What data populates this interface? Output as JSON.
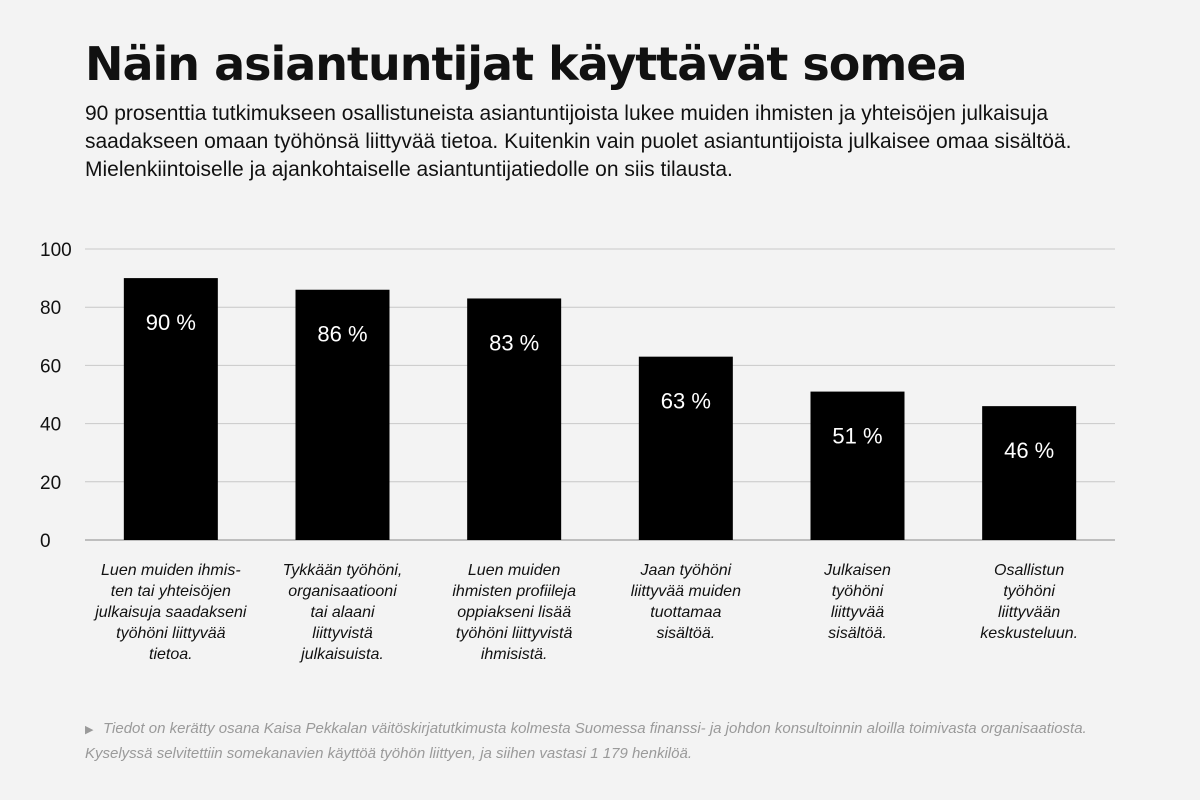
{
  "header": {
    "title": "Näin asiantuntijat käyttävät somea",
    "intro": "90 prosenttia tutkimukseen osallistuneista asiantuntijoista lukee muiden ihmisten ja yhteisöjen julkaisuja saadakseen omaan työhönsä liittyvää tietoa. Kuitenkin vain puolet asiantuntijoista julkaisee omaa sisältöä. Mielenkiintoiselle ja ajankohtaiselle asiantuntijatiedolle on siis tilausta."
  },
  "chart_data": {
    "type": "bar",
    "categories": [
      [
        "Luen muiden ihmis-",
        "ten tai yhteisöjen",
        "julkaisuja saadakseni",
        "työhöni liittyvää",
        "tietoa."
      ],
      [
        "Tykkään työhöni,",
        "organisaatiooni",
        "tai alaani",
        "liittyvistä",
        "julkaisuista."
      ],
      [
        "Luen muiden",
        "ihmisten profiileja",
        "oppiakseni lisää",
        "työhöni liittyvistä",
        "ihmisistä."
      ],
      [
        "Jaan työhöni",
        "liittyvää muiden",
        "tuottamaa",
        "sisältöä."
      ],
      [
        "Julkaisen",
        "työhöni",
        "liittyvää",
        "sisältöä."
      ],
      [
        "Osallistun",
        "työhöni",
        "liittyvään",
        "keskusteluun."
      ]
    ],
    "values": [
      90,
      86,
      83,
      63,
      51,
      46
    ],
    "value_labels": [
      "90 %",
      "86 %",
      "83 %",
      "63 %",
      "51 %",
      "46 %"
    ],
    "ylim": [
      0,
      100
    ],
    "yticks": [
      0,
      20,
      40,
      60,
      80,
      100
    ],
    "grid": true,
    "colors": {
      "bar": "#000000",
      "value_label": "#ffffff",
      "grid": "#c8c8c8"
    }
  },
  "footnote": {
    "marker": "▶",
    "text": "Tiedot on kerätty osana Kaisa Pekkalan väitöskirjatutkimusta kolmesta Suomessa finanssi- ja johdon konsultoinnin aloilla toimivasta organisaatiosta. Kyselyssä selvitettiin somekanavien käyttöä työhön liittyen, ja siihen vastasi 1 179 henkilöä."
  }
}
